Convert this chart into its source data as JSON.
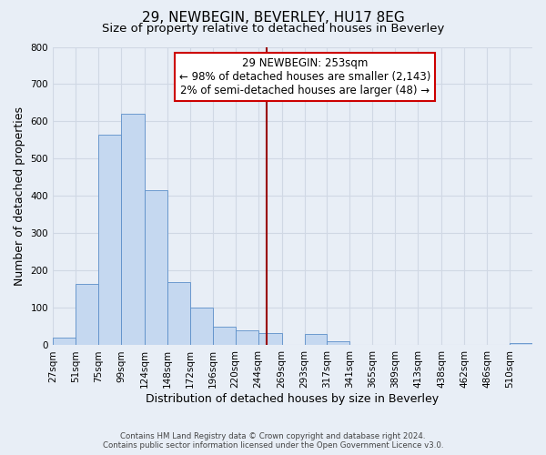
{
  "title": "29, NEWBEGIN, BEVERLEY, HU17 8EG",
  "subtitle": "Size of property relative to detached houses in Beverley",
  "xlabel": "Distribution of detached houses by size in Beverley",
  "ylabel": "Number of detached properties",
  "footer_line1": "Contains HM Land Registry data © Crown copyright and database right 2024.",
  "footer_line2": "Contains public sector information licensed under the Open Government Licence v3.0.",
  "bin_labels": [
    "27sqm",
    "51sqm",
    "75sqm",
    "99sqm",
    "124sqm",
    "148sqm",
    "172sqm",
    "196sqm",
    "220sqm",
    "244sqm",
    "269sqm",
    "293sqm",
    "317sqm",
    "341sqm",
    "365sqm",
    "389sqm",
    "413sqm",
    "438sqm",
    "462sqm",
    "486sqm",
    "510sqm"
  ],
  "bin_edges": [
    27,
    51,
    75,
    99,
    124,
    148,
    172,
    196,
    220,
    244,
    269,
    293,
    317,
    341,
    365,
    389,
    413,
    438,
    462,
    486,
    510
  ],
  "bar_heights": [
    20,
    165,
    565,
    620,
    415,
    170,
    100,
    50,
    40,
    33,
    0,
    30,
    10,
    0,
    0,
    0,
    0,
    0,
    0,
    0,
    5
  ],
  "bar_color": "#c5d8f0",
  "bar_edge_color": "#5b8fc9",
  "background_color": "#e8eef6",
  "grid_color": "#d0d8e4",
  "vline_x": 253,
  "vline_color": "#990000",
  "ylim": [
    0,
    800
  ],
  "yticks": [
    0,
    100,
    200,
    300,
    400,
    500,
    600,
    700,
    800
  ],
  "annotation_title": "29 NEWBEGIN: 253sqm",
  "annotation_line1": "← 98% of detached houses are smaller (2,143)",
  "annotation_line2": "2% of semi-detached houses are larger (48) →",
  "annotation_box_color": "#ffffff",
  "annotation_box_edge": "#cc0000",
  "title_fontsize": 11,
  "subtitle_fontsize": 9.5,
  "axis_label_fontsize": 9,
  "tick_fontsize": 7.5,
  "annotation_fontsize": 8.5
}
